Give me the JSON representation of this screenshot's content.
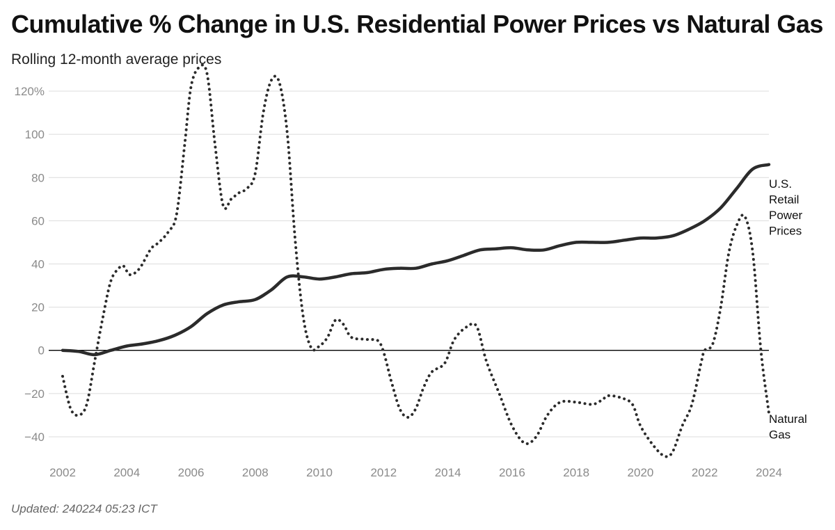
{
  "header": {
    "title": "Cumulative % Change in U.S. Residential Power Prices vs Natural Gas",
    "subtitle": "Rolling 12-month average prices"
  },
  "footer": {
    "updated": "Updated: 240224 05:23 ICT"
  },
  "chart_data": {
    "type": "line",
    "title": "Cumulative % Change in U.S. Residential Power Prices vs Natural Gas",
    "subtitle": "Rolling 12-month average prices",
    "xlabel": "",
    "ylabel": "",
    "xlim": [
      2002,
      2024
    ],
    "ylim": [
      -50,
      130
    ],
    "x_ticks": [
      2002,
      2004,
      2006,
      2008,
      2010,
      2012,
      2014,
      2016,
      2018,
      2020,
      2022,
      2024
    ],
    "y_ticks": [
      {
        "value": 120,
        "label": "120%"
      },
      {
        "value": 100,
        "label": "100"
      },
      {
        "value": 80,
        "label": "80"
      },
      {
        "value": 60,
        "label": "60"
      },
      {
        "value": 40,
        "label": "40"
      },
      {
        "value": 20,
        "label": "20"
      },
      {
        "value": 0,
        "label": "0"
      },
      {
        "value": -20,
        "label": "−20"
      },
      {
        "value": -40,
        "label": "−40"
      }
    ],
    "grid": true,
    "legend": "end-of-line labels",
    "series": [
      {
        "name": "U.S. Retail Power Prices",
        "label_lines": [
          "U.S.",
          "Retail",
          "Power",
          "Prices"
        ],
        "style": "solid",
        "color": "#2b2b2b",
        "points": [
          [
            2002.0,
            0
          ],
          [
            2002.5,
            -0.5
          ],
          [
            2003.0,
            -2
          ],
          [
            2003.5,
            0
          ],
          [
            2004.0,
            2
          ],
          [
            2004.5,
            3
          ],
          [
            2005.0,
            4.5
          ],
          [
            2005.5,
            7
          ],
          [
            2006.0,
            11
          ],
          [
            2006.5,
            17
          ],
          [
            2007.0,
            21
          ],
          [
            2007.5,
            22.5
          ],
          [
            2008.0,
            23.5
          ],
          [
            2008.5,
            28
          ],
          [
            2009.0,
            34
          ],
          [
            2009.5,
            34
          ],
          [
            2010.0,
            33
          ],
          [
            2010.5,
            34
          ],
          [
            2011.0,
            35.5
          ],
          [
            2011.5,
            36
          ],
          [
            2012.0,
            37.5
          ],
          [
            2012.5,
            38
          ],
          [
            2013.0,
            38
          ],
          [
            2013.5,
            40
          ],
          [
            2014.0,
            41.5
          ],
          [
            2014.5,
            44
          ],
          [
            2015.0,
            46.5
          ],
          [
            2015.5,
            47
          ],
          [
            2016.0,
            47.5
          ],
          [
            2016.5,
            46.5
          ],
          [
            2017.0,
            46.5
          ],
          [
            2017.5,
            48.5
          ],
          [
            2018.0,
            50
          ],
          [
            2018.5,
            50
          ],
          [
            2019.0,
            50
          ],
          [
            2019.5,
            51
          ],
          [
            2020.0,
            52
          ],
          [
            2020.5,
            52
          ],
          [
            2021.0,
            53
          ],
          [
            2021.5,
            56
          ],
          [
            2022.0,
            60
          ],
          [
            2022.5,
            66
          ],
          [
            2023.0,
            75
          ],
          [
            2023.5,
            84
          ],
          [
            2024.0,
            86
          ]
        ]
      },
      {
        "name": "Natural Gas",
        "label_lines": [
          "Natural",
          "Gas"
        ],
        "style": "dotted",
        "color": "#2b2b2b",
        "points": [
          [
            2002.0,
            -12
          ],
          [
            2002.25,
            -27
          ],
          [
            2002.5,
            -30
          ],
          [
            2002.75,
            -25
          ],
          [
            2003.0,
            -5
          ],
          [
            2003.25,
            15
          ],
          [
            2003.5,
            32
          ],
          [
            2003.75,
            38
          ],
          [
            2003.9,
            39
          ],
          [
            2004.1,
            35
          ],
          [
            2004.4,
            38
          ],
          [
            2004.75,
            47
          ],
          [
            2005.0,
            50
          ],
          [
            2005.3,
            55
          ],
          [
            2005.55,
            63
          ],
          [
            2005.8,
            95
          ],
          [
            2006.0,
            122
          ],
          [
            2006.25,
            131
          ],
          [
            2006.5,
            128
          ],
          [
            2006.75,
            95
          ],
          [
            2007.0,
            67
          ],
          [
            2007.25,
            70
          ],
          [
            2007.5,
            73
          ],
          [
            2007.75,
            75
          ],
          [
            2008.0,
            82
          ],
          [
            2008.25,
            110
          ],
          [
            2008.5,
            125
          ],
          [
            2008.75,
            124
          ],
          [
            2009.0,
            100
          ],
          [
            2009.25,
            50
          ],
          [
            2009.5,
            15
          ],
          [
            2009.75,
            1
          ],
          [
            2010.0,
            2
          ],
          [
            2010.25,
            6
          ],
          [
            2010.5,
            14
          ],
          [
            2010.75,
            12
          ],
          [
            2011.0,
            6
          ],
          [
            2011.5,
            5
          ],
          [
            2011.9,
            3
          ],
          [
            2012.25,
            -15
          ],
          [
            2012.5,
            -27
          ],
          [
            2012.75,
            -31
          ],
          [
            2013.0,
            -27
          ],
          [
            2013.25,
            -17
          ],
          [
            2013.5,
            -10
          ],
          [
            2013.9,
            -6
          ],
          [
            2014.2,
            5
          ],
          [
            2014.6,
            11
          ],
          [
            2014.9,
            11
          ],
          [
            2015.2,
            -5
          ],
          [
            2015.6,
            -20
          ],
          [
            2016.0,
            -35
          ],
          [
            2016.4,
            -43
          ],
          [
            2016.75,
            -40
          ],
          [
            2017.1,
            -30
          ],
          [
            2017.5,
            -24
          ],
          [
            2018.0,
            -24
          ],
          [
            2018.5,
            -25
          ],
          [
            2018.8,
            -23
          ],
          [
            2019.0,
            -21
          ],
          [
            2019.4,
            -22
          ],
          [
            2019.75,
            -25
          ],
          [
            2020.0,
            -35
          ],
          [
            2020.4,
            -44
          ],
          [
            2020.75,
            -49
          ],
          [
            2021.0,
            -47
          ],
          [
            2021.3,
            -35
          ],
          [
            2021.6,
            -25
          ],
          [
            2021.9,
            -5
          ],
          [
            2022.0,
            0
          ],
          [
            2022.25,
            3
          ],
          [
            2022.5,
            20
          ],
          [
            2022.75,
            45
          ],
          [
            2023.0,
            58
          ],
          [
            2023.25,
            62
          ],
          [
            2023.5,
            45
          ],
          [
            2023.75,
            0
          ],
          [
            2024.0,
            -29
          ]
        ]
      }
    ]
  }
}
